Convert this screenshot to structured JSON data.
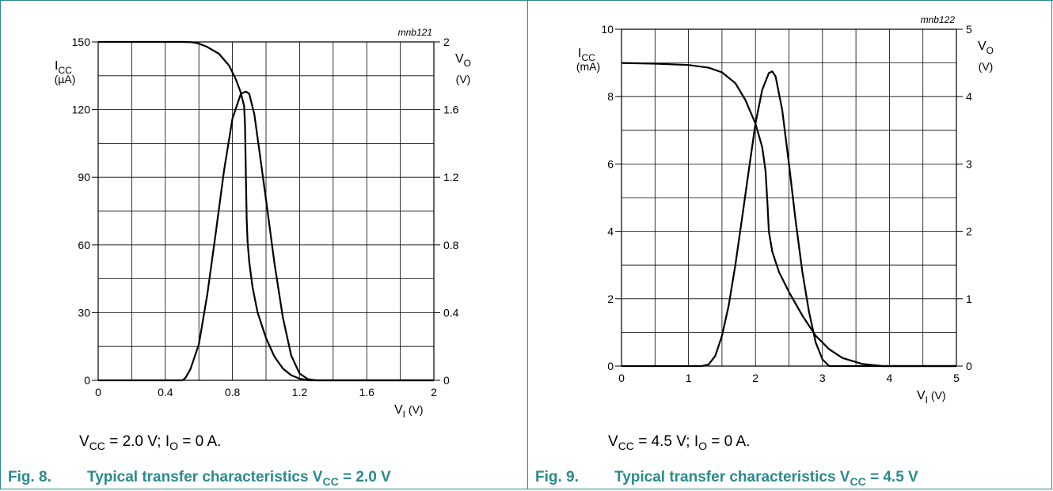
{
  "chart_data": [
    {
      "type": "line",
      "code": "mnb121",
      "x_unit_label": "(V)",
      "x_ticks": [
        "0",
        "0.4",
        "0.8",
        "1.2",
        "1.6",
        "2"
      ],
      "left_ticks": [
        "0",
        "30",
        "60",
        "90",
        "120",
        "150"
      ],
      "right_ticks": [
        "0",
        "0.4",
        "0.8",
        "1.2",
        "1.6",
        "2"
      ],
      "left_label_unit": "(µA)",
      "right_label_unit": "(V)",
      "xlim": [
        0,
        2
      ],
      "ylim_left": [
        0,
        150
      ],
      "ylim_right": [
        0,
        2
      ],
      "grid": true,
      "series": [
        {
          "axis": "right",
          "x": [
            0,
            0.5,
            0.56,
            0.6,
            0.65,
            0.72,
            0.78,
            0.82,
            0.85,
            0.87,
            0.875,
            0.88,
            0.885,
            0.89,
            0.9,
            0.92,
            0.95,
            1.0,
            1.05,
            1.1,
            1.15,
            1.2,
            1.25,
            1.3,
            2
          ],
          "y": [
            2,
            2,
            1.998,
            1.99,
            1.97,
            1.93,
            1.86,
            1.78,
            1.7,
            1.62,
            1.5,
            1.2,
            0.95,
            0.82,
            0.7,
            0.55,
            0.4,
            0.25,
            0.14,
            0.07,
            0.03,
            0.01,
            0.0,
            0,
            0
          ]
        },
        {
          "axis": "left",
          "x": [
            0,
            0.5,
            0.52,
            0.55,
            0.6,
            0.65,
            0.7,
            0.75,
            0.8,
            0.85,
            0.88,
            0.9,
            0.93,
            0.96,
            1.0,
            1.05,
            1.1,
            1.15,
            1.2,
            1.25,
            1.3,
            2
          ],
          "y": [
            0,
            0,
            1,
            5,
            16,
            38,
            65,
            93,
            116,
            127,
            128,
            127,
            118,
            102,
            80,
            52,
            28,
            11,
            3,
            0.5,
            0,
            0
          ]
        }
      ]
    },
    {
      "type": "line",
      "code": "mnb122",
      "x_unit_label": "(V)",
      "x_ticks": [
        "0",
        "1",
        "2",
        "3",
        "4",
        "5"
      ],
      "left_ticks": [
        "0",
        "2",
        "4",
        "6",
        "8",
        "10"
      ],
      "right_ticks": [
        "0",
        "1",
        "2",
        "3",
        "4",
        "5"
      ],
      "left_label_unit": "(mA)",
      "right_label_unit": "(V)",
      "xlim": [
        0,
        5
      ],
      "ylim_left": [
        0,
        10
      ],
      "ylim_right": [
        0,
        5
      ],
      "grid": true,
      "series": [
        {
          "axis": "right",
          "x": [
            0,
            0.5,
            1.0,
            1.3,
            1.5,
            1.7,
            1.85,
            2.0,
            2.1,
            2.15,
            2.18,
            2.2,
            2.25,
            2.35,
            2.5,
            2.7,
            2.9,
            3.1,
            3.3,
            3.6,
            3.9,
            5
          ],
          "y": [
            4.5,
            4.49,
            4.47,
            4.43,
            4.36,
            4.2,
            3.95,
            3.6,
            3.25,
            2.9,
            2.4,
            2.0,
            1.7,
            1.4,
            1.1,
            0.75,
            0.45,
            0.25,
            0.12,
            0.03,
            0.0,
            0
          ]
        },
        {
          "axis": "left",
          "x": [
            0,
            1.2,
            1.3,
            1.4,
            1.5,
            1.6,
            1.7,
            1.8,
            1.9,
            2.0,
            2.1,
            2.2,
            2.25,
            2.3,
            2.4,
            2.5,
            2.6,
            2.7,
            2.8,
            2.9,
            3.0,
            3.1,
            5
          ],
          "y": [
            0,
            0,
            0.05,
            0.3,
            0.9,
            1.8,
            3.0,
            4.4,
            5.8,
            7.2,
            8.2,
            8.7,
            8.75,
            8.6,
            7.6,
            6.0,
            4.3,
            2.8,
            1.6,
            0.7,
            0.2,
            0,
            0
          ]
        }
      ]
    }
  ],
  "panels": [
    {
      "cond_vcc": "2.0 V",
      "cond_io": "0 A.",
      "fig_label": "Fig. 8.",
      "fig_title_pre": "Typical transfer characteristics V",
      "fig_title_post": " = 2.0 V"
    },
    {
      "cond_vcc": "4.5 V",
      "cond_io": "0 A.",
      "fig_label": "Fig. 9.",
      "fig_title_pre": "Typical transfer characteristics V",
      "fig_title_post": " = 4.5 V"
    }
  ],
  "symbols": {
    "icc_main": "I",
    "icc_sub": "CC",
    "vo_main": "V",
    "vo_sub": "O",
    "vi_main": "V",
    "vi_sub": "I",
    "vcc_main": "V",
    "vcc_sub": "CC",
    "io_main": "I",
    "io_sub": "O"
  },
  "colors": {
    "accent": "#2a8a8e",
    "curve": "#000000",
    "grid": "#000000"
  }
}
